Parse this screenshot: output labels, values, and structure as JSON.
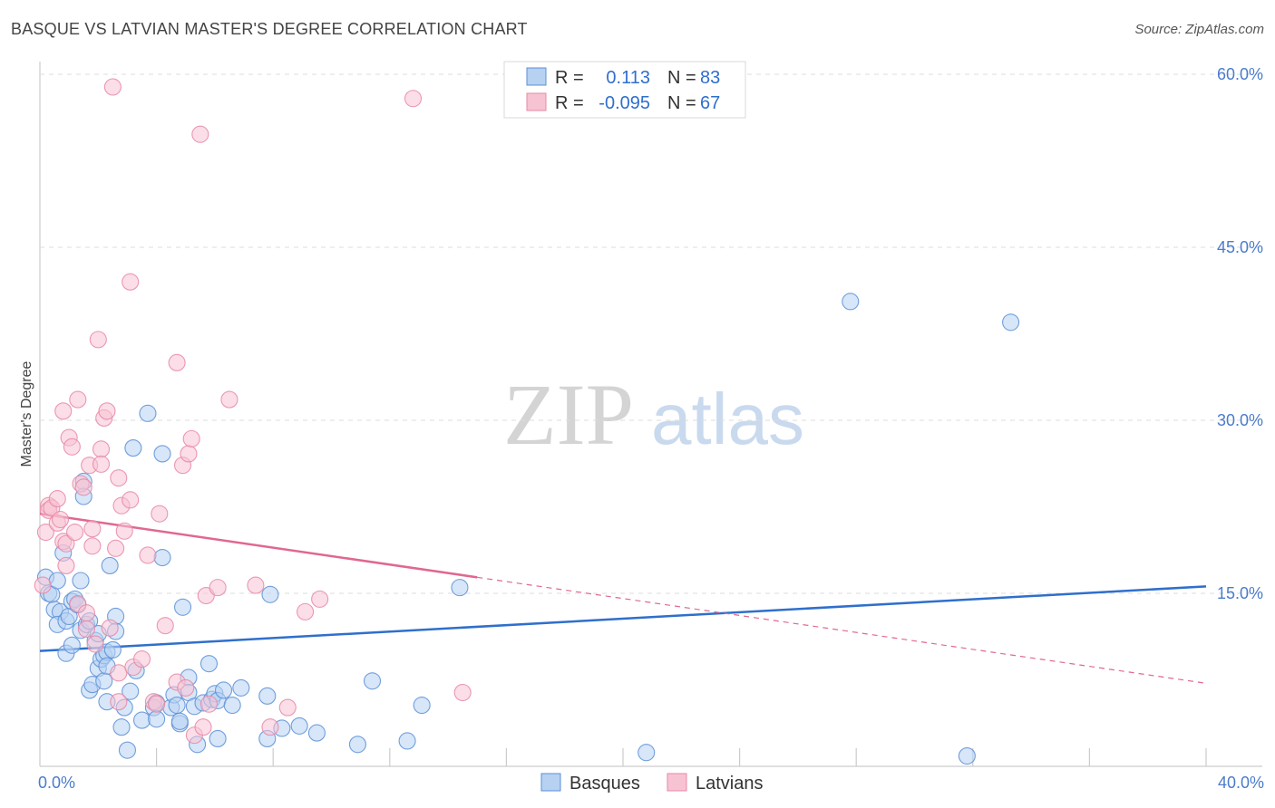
{
  "title": "BASQUE VS LATVIAN MASTER'S DEGREE CORRELATION CHART",
  "source": "Source: ZipAtlas.com",
  "watermark": {
    "zip": "ZIP",
    "atlas": "atlas"
  },
  "colors": {
    "blue": "#5b8fd6",
    "blue_fill": "#b7d1f2",
    "blue_line": "#2f6fcc",
    "pink": "#e887a6",
    "pink_fill": "#f7c3d3",
    "pink_line": "#e0688f",
    "axis_label": "#4a7ccc",
    "grid": "#dddddd"
  },
  "legend": {
    "r_label": "R =",
    "n_label": "N =",
    "rows": [
      {
        "series": "Basques",
        "r": "0.113",
        "n": "83"
      },
      {
        "series": "Latvians",
        "r": "-0.095",
        "n": "67"
      }
    ]
  },
  "chart_data": {
    "type": "scatter",
    "title": "BASQUE VS LATVIAN MASTER'S DEGREE CORRELATION CHART",
    "xlabel": "",
    "ylabel": "Master's Degree",
    "xlim": [
      0,
      40
    ],
    "ylim": [
      0,
      60
    ],
    "x_tick_labels": [
      {
        "value": 0,
        "label": "0.0%"
      },
      {
        "value": 40,
        "label": "40.0%"
      }
    ],
    "x_minor_ticks": [
      4,
      8,
      12,
      16,
      20,
      24,
      28,
      32,
      36,
      40
    ],
    "y_ticks": [
      {
        "value": 15,
        "label": "15.0%"
      },
      {
        "value": 30,
        "label": "30.0%"
      },
      {
        "value": 45,
        "label": "45.0%"
      },
      {
        "value": 60,
        "label": "60.0%"
      }
    ],
    "legend_items": [
      "Basques",
      "Latvians"
    ],
    "series": [
      {
        "name": "Basques",
        "color": "blue",
        "trend": {
          "x0": 0,
          "y0": 10.0,
          "x1": 40,
          "y1": 15.6,
          "dashed_from": null
        },
        "points": [
          [
            0.2,
            16.4
          ],
          [
            0.3,
            15.0
          ],
          [
            0.4,
            14.9
          ],
          [
            0.5,
            13.6
          ],
          [
            0.6,
            16.1
          ],
          [
            0.7,
            13.4
          ],
          [
            0.6,
            12.3
          ],
          [
            0.8,
            18.5
          ],
          [
            0.9,
            12.6
          ],
          [
            0.9,
            9.8
          ],
          [
            1.0,
            13.0
          ],
          [
            1.1,
            14.3
          ],
          [
            1.1,
            10.5
          ],
          [
            1.2,
            14.5
          ],
          [
            1.3,
            14.0
          ],
          [
            1.4,
            11.8
          ],
          [
            1.4,
            16.1
          ],
          [
            1.5,
            24.7
          ],
          [
            1.5,
            23.4
          ],
          [
            1.6,
            12.3
          ],
          [
            1.7,
            6.6
          ],
          [
            1.7,
            12.6
          ],
          [
            1.8,
            7.1
          ],
          [
            1.9,
            10.9
          ],
          [
            2.0,
            8.5
          ],
          [
            2.0,
            11.5
          ],
          [
            2.1,
            9.3
          ],
          [
            2.2,
            7.4
          ],
          [
            2.2,
            9.6
          ],
          [
            2.3,
            5.6
          ],
          [
            2.3,
            9.9
          ],
          [
            2.3,
            8.7
          ],
          [
            2.4,
            17.4
          ],
          [
            2.5,
            10.1
          ],
          [
            2.6,
            13.0
          ],
          [
            2.6,
            11.7
          ],
          [
            2.8,
            3.4
          ],
          [
            2.9,
            5.1
          ],
          [
            3.0,
            1.4
          ],
          [
            3.1,
            6.5
          ],
          [
            3.3,
            8.3
          ],
          [
            3.2,
            27.6
          ],
          [
            3.5,
            4.0
          ],
          [
            3.7,
            30.6
          ],
          [
            3.9,
            5.1
          ],
          [
            4.0,
            4.1
          ],
          [
            4.0,
            5.5
          ],
          [
            4.2,
            27.1
          ],
          [
            4.2,
            18.1
          ],
          [
            4.5,
            5.1
          ],
          [
            4.6,
            6.2
          ],
          [
            4.7,
            5.3
          ],
          [
            4.8,
            3.7
          ],
          [
            4.8,
            3.9
          ],
          [
            4.9,
            13.8
          ],
          [
            5.1,
            7.7
          ],
          [
            5.1,
            6.4
          ],
          [
            5.3,
            5.2
          ],
          [
            5.4,
            1.9
          ],
          [
            5.6,
            5.5
          ],
          [
            5.9,
            5.8
          ],
          [
            5.8,
            8.9
          ],
          [
            6.0,
            6.3
          ],
          [
            6.1,
            2.4
          ],
          [
            6.1,
            5.7
          ],
          [
            6.3,
            6.6
          ],
          [
            6.6,
            5.3
          ],
          [
            6.9,
            6.8
          ],
          [
            7.8,
            2.4
          ],
          [
            7.8,
            6.1
          ],
          [
            7.9,
            14.9
          ],
          [
            8.3,
            3.3
          ],
          [
            8.9,
            3.5
          ],
          [
            9.5,
            2.9
          ],
          [
            10.9,
            1.9
          ],
          [
            11.4,
            7.4
          ],
          [
            12.6,
            2.2
          ],
          [
            13.1,
            5.3
          ],
          [
            14.4,
            15.5
          ],
          [
            20.8,
            1.2
          ],
          [
            27.8,
            40.3
          ],
          [
            31.8,
            0.9
          ],
          [
            33.3,
            38.5
          ]
        ]
      },
      {
        "name": "Latvians",
        "color": "pink",
        "trend": {
          "x0": 0,
          "y0": 21.9,
          "x1": 40,
          "y1": 7.2,
          "dashed_from": 15
        },
        "points": [
          [
            0.1,
            15.7
          ],
          [
            0.2,
            20.3
          ],
          [
            0.3,
            22.6
          ],
          [
            0.3,
            22.2
          ],
          [
            0.4,
            22.4
          ],
          [
            0.6,
            21.1
          ],
          [
            0.6,
            23.2
          ],
          [
            0.7,
            21.4
          ],
          [
            0.8,
            19.5
          ],
          [
            0.8,
            30.8
          ],
          [
            0.9,
            19.3
          ],
          [
            0.9,
            17.4
          ],
          [
            1.0,
            28.5
          ],
          [
            1.1,
            27.7
          ],
          [
            1.2,
            20.3
          ],
          [
            1.3,
            14.1
          ],
          [
            1.3,
            31.8
          ],
          [
            1.4,
            24.5
          ],
          [
            1.5,
            24.2
          ],
          [
            1.6,
            13.3
          ],
          [
            1.6,
            11.9
          ],
          [
            1.7,
            26.1
          ],
          [
            1.8,
            20.6
          ],
          [
            1.8,
            19.1
          ],
          [
            1.9,
            10.6
          ],
          [
            2.0,
            37.0
          ],
          [
            2.1,
            27.5
          ],
          [
            2.1,
            26.2
          ],
          [
            2.2,
            30.2
          ],
          [
            2.3,
            30.8
          ],
          [
            2.4,
            12.0
          ],
          [
            2.5,
            58.9
          ],
          [
            2.6,
            18.9
          ],
          [
            2.7,
            8.1
          ],
          [
            2.7,
            5.6
          ],
          [
            2.7,
            25.0
          ],
          [
            2.8,
            22.6
          ],
          [
            2.9,
            20.4
          ],
          [
            3.1,
            23.1
          ],
          [
            3.1,
            42.0
          ],
          [
            3.2,
            8.6
          ],
          [
            3.5,
            9.3
          ],
          [
            3.7,
            18.3
          ],
          [
            3.9,
            5.6
          ],
          [
            4.0,
            5.4
          ],
          [
            4.1,
            21.9
          ],
          [
            4.3,
            12.2
          ],
          [
            4.7,
            7.3
          ],
          [
            4.7,
            35.0
          ],
          [
            4.9,
            26.1
          ],
          [
            5.0,
            6.8
          ],
          [
            5.1,
            27.1
          ],
          [
            5.2,
            28.4
          ],
          [
            5.3,
            2.7
          ],
          [
            5.5,
            54.8
          ],
          [
            5.6,
            3.4
          ],
          [
            5.7,
            14.8
          ],
          [
            5.8,
            5.4
          ],
          [
            6.1,
            15.5
          ],
          [
            6.5,
            31.8
          ],
          [
            7.4,
            15.7
          ],
          [
            7.9,
            3.4
          ],
          [
            8.5,
            5.1
          ],
          [
            9.1,
            13.4
          ],
          [
            9.6,
            14.5
          ],
          [
            12.8,
            57.9
          ],
          [
            14.5,
            6.4
          ]
        ]
      }
    ]
  }
}
